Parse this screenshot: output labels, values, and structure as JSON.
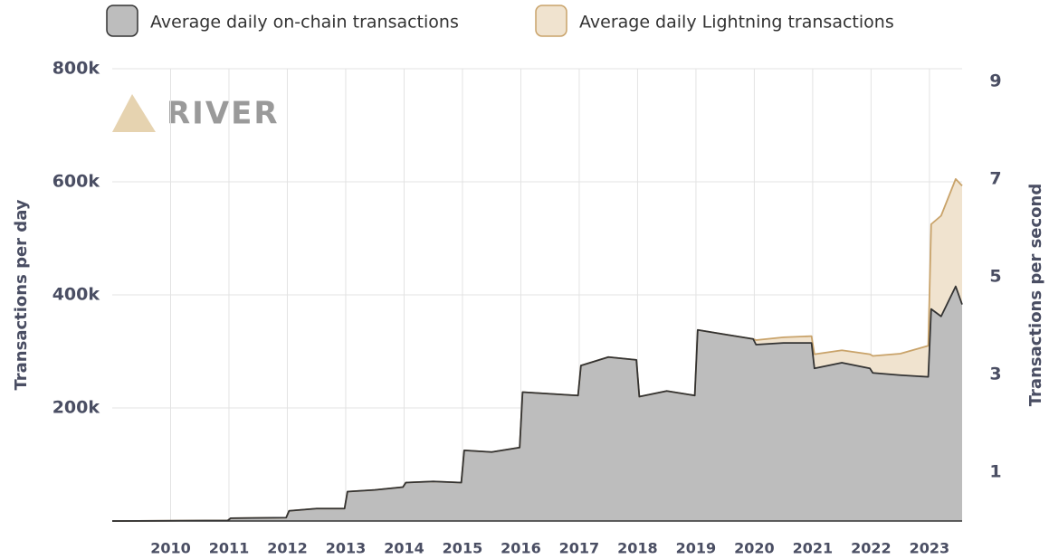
{
  "chart_data": {
    "type": "stacked_area",
    "watermark": "RIVER",
    "ylabel": "Transactions per day",
    "y2label": "Transactions per second",
    "x": [
      2009,
      2010.98,
      2011.03,
      2011.98,
      2012.03,
      2012.5,
      2012.98,
      2013.03,
      2013.5,
      2013.98,
      2014.03,
      2014.5,
      2014.98,
      2015.03,
      2015.5,
      2015.98,
      2016.03,
      2016.5,
      2016.98,
      2017.03,
      2017.5,
      2017.98,
      2018.03,
      2018.5,
      2018.98,
      2019.03,
      2019.5,
      2019.98,
      2020.03,
      2020.5,
      2020.98,
      2021.03,
      2021.5,
      2021.98,
      2022.03,
      2022.5,
      2022.98,
      2023.03,
      2023.2,
      2023.45,
      2023.56
    ],
    "series": [
      {
        "name": "Average daily on-chain transactions",
        "color": "#bdbdbd",
        "line_color": "#333333",
        "values": [
          0,
          1000,
          5000,
          6000,
          18000,
          22000,
          22000,
          52000,
          55000,
          60000,
          68000,
          70000,
          68000,
          125000,
          122000,
          130000,
          228000,
          225000,
          222000,
          275000,
          290000,
          285000,
          220000,
          230000,
          222000,
          338000,
          330000,
          322000,
          312000,
          315000,
          315000,
          270000,
          280000,
          270000,
          262000,
          258000,
          255000,
          375000,
          362000,
          415000,
          383000
        ]
      },
      {
        "name": "Average daily Lightning transactions",
        "color": "#f0e3cf",
        "line_color": "#c9a36a",
        "values": [
          0,
          0,
          0,
          0,
          0,
          0,
          0,
          0,
          0,
          0,
          0,
          0,
          0,
          0,
          0,
          0,
          0,
          0,
          0,
          0,
          0,
          0,
          0,
          0,
          0,
          0,
          0,
          0,
          8000,
          10000,
          12000,
          25000,
          22000,
          25000,
          30000,
          38000,
          55000,
          150000,
          178000,
          190000,
          210000
        ]
      }
    ],
    "xlim": [
      2009,
      2023.56
    ],
    "xticks": [
      2010,
      2011,
      2012,
      2013,
      2014,
      2015,
      2016,
      2017,
      2018,
      2019,
      2020,
      2021,
      2022,
      2023
    ],
    "ylim": [
      0,
      800000
    ],
    "yticks": [
      {
        "value": 200000,
        "label": "200k"
      },
      {
        "value": 400000,
        "label": "400k"
      },
      {
        "value": 600000,
        "label": "600k"
      },
      {
        "value": 800000,
        "label": "800k"
      }
    ],
    "y2lim": [
      0,
      9.26
    ],
    "y2ticks": [
      1,
      3,
      5,
      7,
      9
    ],
    "grid": true
  }
}
